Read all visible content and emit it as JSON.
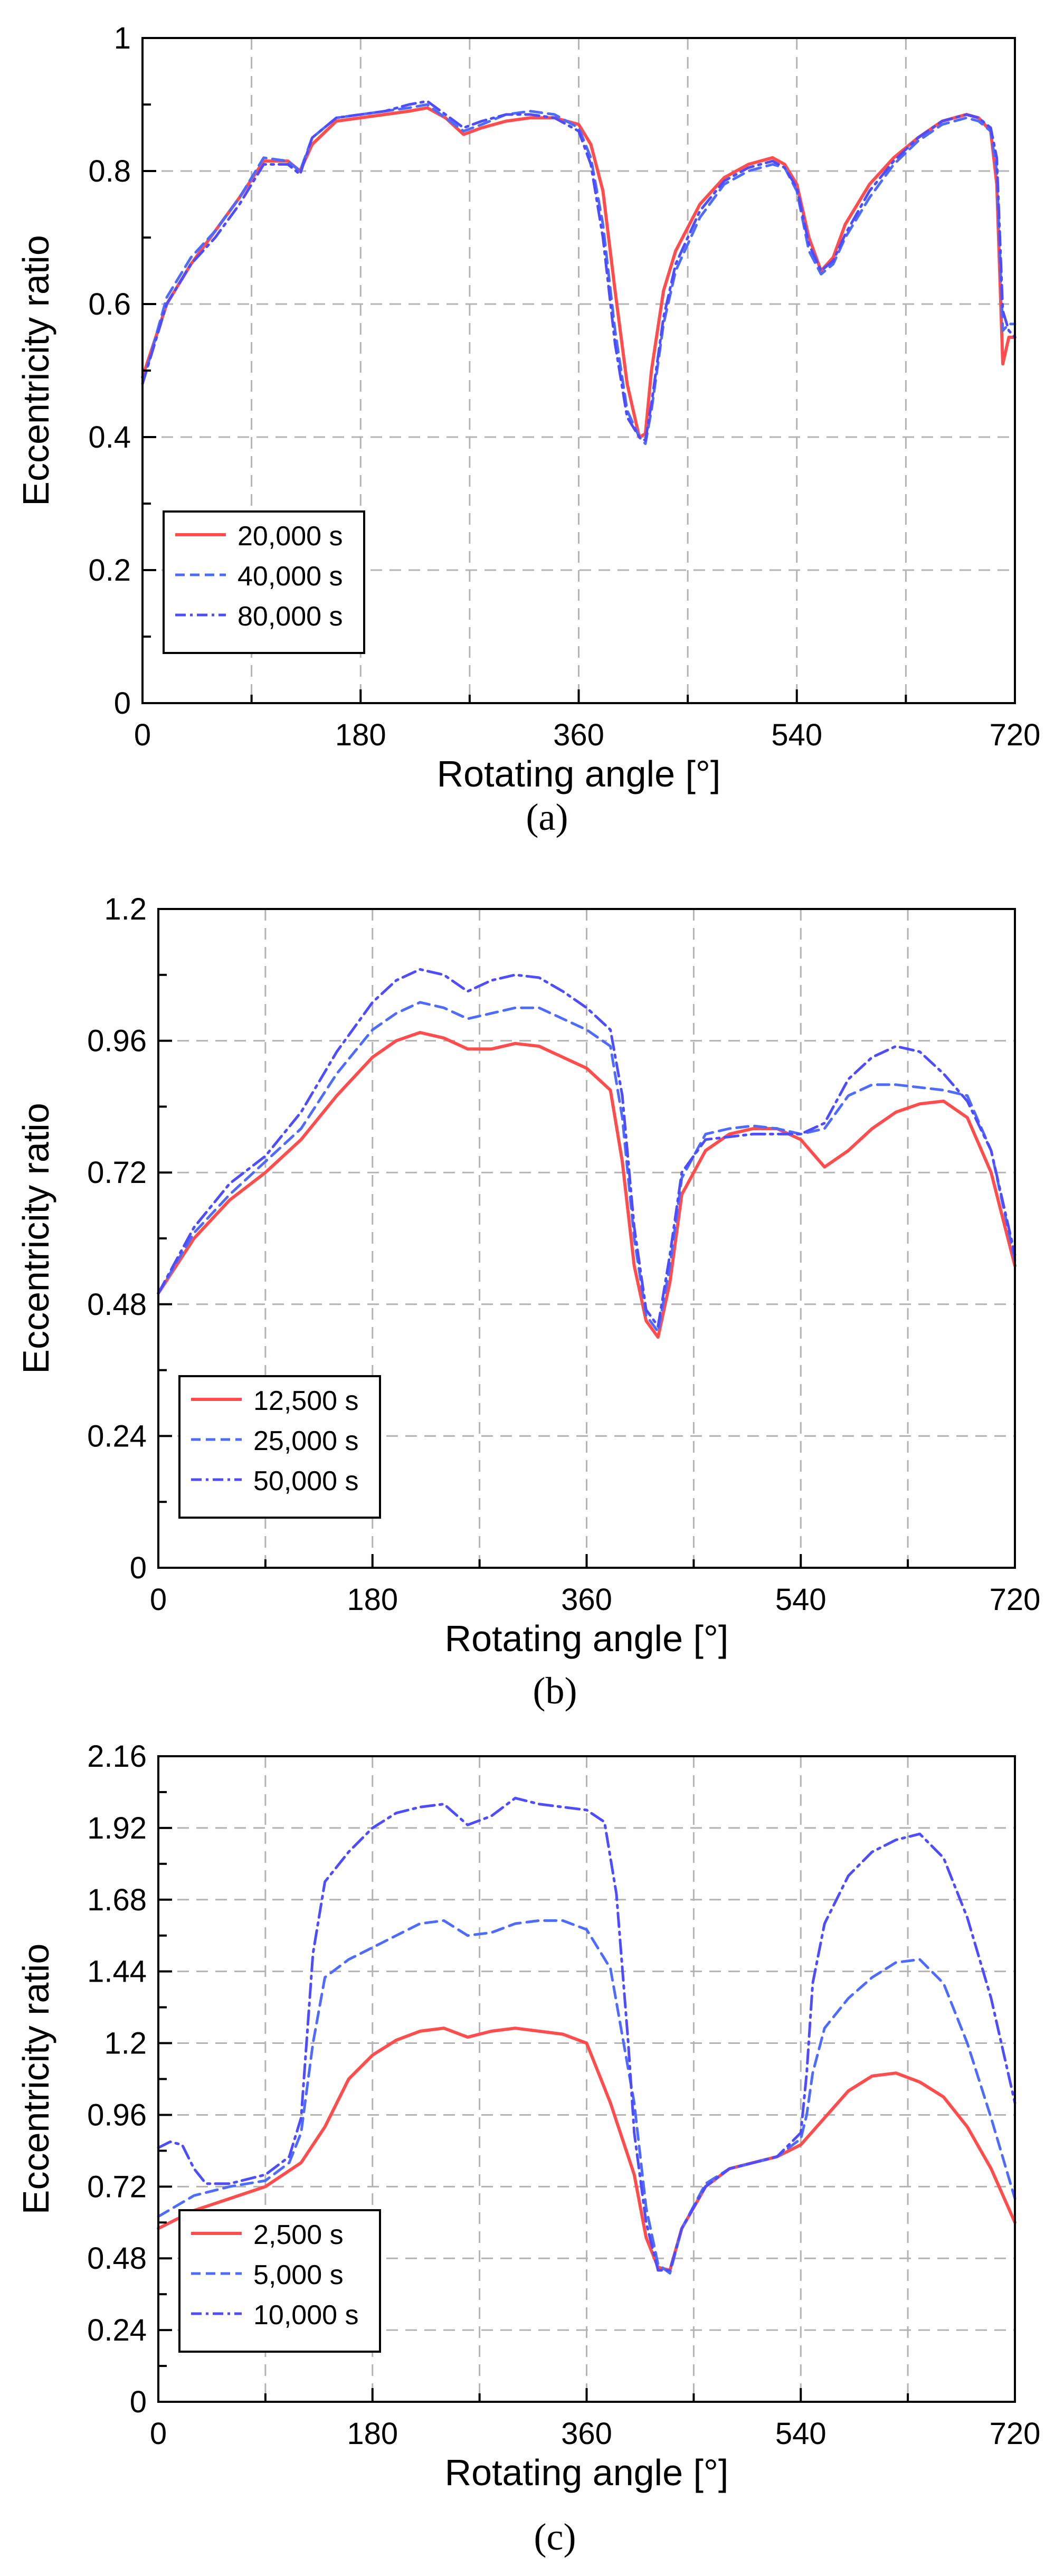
{
  "figure": {
    "panels": [
      {
        "caption": "(a)"
      },
      {
        "caption": "(b)"
      },
      {
        "caption": "(c)"
      }
    ]
  },
  "style": {
    "series_colors": [
      "#ff4d4d",
      "#4d6bff",
      "#4d4dff"
    ],
    "grid_color": "#b3b3b3",
    "axis_color": "#000000"
  },
  "chart_data": [
    {
      "type": "line",
      "title": "",
      "xlabel": "Rotating angle [°]",
      "ylabel": "Eccentricity ratio",
      "xlim": [
        0,
        720
      ],
      "ylim": [
        0,
        1
      ],
      "xticks": [
        0,
        180,
        360,
        540,
        720
      ],
      "xtick_labels": [
        "0",
        "180",
        "360",
        "540",
        "720"
      ],
      "yticks": [
        0,
        0.2,
        0.4,
        0.6,
        0.8,
        1
      ],
      "ytick_labels": [
        "0",
        "0.2",
        "0.4",
        "0.6",
        "0.8",
        "1"
      ],
      "grid": true,
      "legend_position": "bottom-left",
      "series": [
        {
          "name": "20,000 s",
          "style": "solid",
          "x": [
            0,
            20,
            40,
            60,
            80,
            100,
            120,
            130,
            140,
            160,
            180,
            200,
            220,
            235,
            250,
            265,
            280,
            300,
            320,
            340,
            360,
            370,
            380,
            390,
            400,
            410,
            415,
            420,
            430,
            440,
            460,
            480,
            500,
            520,
            530,
            540,
            550,
            560,
            570,
            580,
            600,
            620,
            640,
            660,
            680,
            690,
            700,
            705,
            710,
            715,
            720
          ],
          "y": [
            0.49,
            0.6,
            0.66,
            0.71,
            0.76,
            0.815,
            0.815,
            0.8,
            0.84,
            0.875,
            0.88,
            0.885,
            0.89,
            0.895,
            0.88,
            0.855,
            0.865,
            0.875,
            0.88,
            0.88,
            0.87,
            0.84,
            0.77,
            0.62,
            0.48,
            0.4,
            0.405,
            0.5,
            0.62,
            0.68,
            0.75,
            0.79,
            0.81,
            0.82,
            0.81,
            0.78,
            0.7,
            0.65,
            0.67,
            0.72,
            0.78,
            0.82,
            0.85,
            0.875,
            0.885,
            0.88,
            0.86,
            0.78,
            0.51,
            0.55,
            0.55
          ]
        },
        {
          "name": "40,000 s",
          "style": "dashed",
          "x": [
            0,
            20,
            40,
            60,
            80,
            100,
            120,
            130,
            140,
            160,
            180,
            200,
            220,
            235,
            250,
            265,
            280,
            300,
            320,
            340,
            360,
            370,
            380,
            390,
            400,
            410,
            415,
            420,
            430,
            440,
            460,
            480,
            500,
            520,
            530,
            540,
            550,
            560,
            570,
            580,
            600,
            620,
            640,
            660,
            680,
            690,
            700,
            705,
            710,
            715,
            720
          ],
          "y": [
            0.48,
            0.61,
            0.67,
            0.71,
            0.76,
            0.82,
            0.815,
            0.8,
            0.85,
            0.88,
            0.885,
            0.89,
            0.895,
            0.9,
            0.88,
            0.86,
            0.87,
            0.885,
            0.89,
            0.885,
            0.865,
            0.82,
            0.72,
            0.56,
            0.44,
            0.4,
            0.39,
            0.44,
            0.57,
            0.65,
            0.73,
            0.78,
            0.8,
            0.81,
            0.805,
            0.77,
            0.68,
            0.645,
            0.66,
            0.7,
            0.76,
            0.81,
            0.845,
            0.87,
            0.88,
            0.875,
            0.86,
            0.8,
            0.56,
            0.57,
            0.57
          ]
        },
        {
          "name": "80,000 s",
          "style": "dashdot",
          "x": [
            0,
            20,
            40,
            60,
            80,
            100,
            120,
            130,
            140,
            160,
            180,
            200,
            220,
            235,
            250,
            265,
            280,
            300,
            320,
            340,
            360,
            370,
            380,
            390,
            400,
            410,
            415,
            420,
            430,
            440,
            460,
            480,
            500,
            520,
            530,
            540,
            550,
            560,
            570,
            580,
            600,
            620,
            640,
            660,
            680,
            690,
            700,
            705,
            710,
            715,
            720
          ],
          "y": [
            0.48,
            0.6,
            0.66,
            0.7,
            0.75,
            0.81,
            0.81,
            0.795,
            0.85,
            0.88,
            0.885,
            0.89,
            0.9,
            0.905,
            0.885,
            0.865,
            0.875,
            0.885,
            0.885,
            0.88,
            0.86,
            0.81,
            0.7,
            0.54,
            0.43,
            0.4,
            0.395,
            0.45,
            0.58,
            0.66,
            0.74,
            0.785,
            0.805,
            0.815,
            0.805,
            0.775,
            0.69,
            0.65,
            0.665,
            0.705,
            0.77,
            0.815,
            0.85,
            0.875,
            0.885,
            0.88,
            0.865,
            0.82,
            0.59,
            0.56,
            0.55
          ]
        }
      ]
    },
    {
      "type": "line",
      "title": "",
      "xlabel": "Rotating angle [°]",
      "ylabel": "Eccentricity ratio",
      "xlim": [
        0,
        720
      ],
      "ylim": [
        0,
        1.2
      ],
      "xticks": [
        0,
        180,
        360,
        540,
        720
      ],
      "xtick_labels": [
        "0",
        "180",
        "360",
        "540",
        "720"
      ],
      "yticks": [
        0,
        0.24,
        0.48,
        0.72,
        0.96,
        1.2
      ],
      "ytick_labels": [
        "0",
        "0.24",
        "0.48",
        "0.72",
        "0.96",
        "1.2"
      ],
      "grid": true,
      "legend_position": "bottom-left",
      "series": [
        {
          "name": "12,500 s",
          "style": "solid",
          "x": [
            0,
            30,
            60,
            90,
            120,
            150,
            180,
            200,
            220,
            240,
            260,
            280,
            300,
            320,
            340,
            360,
            380,
            390,
            400,
            410,
            420,
            430,
            440,
            460,
            480,
            500,
            520,
            540,
            560,
            580,
            600,
            620,
            640,
            660,
            680,
            700,
            720
          ],
          "y": [
            0.5,
            0.6,
            0.67,
            0.72,
            0.78,
            0.86,
            0.93,
            0.96,
            0.975,
            0.965,
            0.945,
            0.945,
            0.955,
            0.95,
            0.93,
            0.91,
            0.87,
            0.74,
            0.55,
            0.45,
            0.42,
            0.52,
            0.68,
            0.76,
            0.79,
            0.8,
            0.8,
            0.78,
            0.73,
            0.76,
            0.8,
            0.83,
            0.845,
            0.85,
            0.82,
            0.72,
            0.55
          ]
        },
        {
          "name": "25,000 s",
          "style": "dashed",
          "x": [
            0,
            30,
            60,
            90,
            120,
            150,
            180,
            200,
            220,
            240,
            260,
            280,
            300,
            320,
            340,
            360,
            380,
            390,
            400,
            410,
            420,
            430,
            440,
            460,
            480,
            500,
            520,
            540,
            560,
            580,
            600,
            620,
            640,
            660,
            680,
            700,
            720
          ],
          "y": [
            0.5,
            0.61,
            0.68,
            0.74,
            0.8,
            0.9,
            0.98,
            1.01,
            1.03,
            1.02,
            1.0,
            1.01,
            1.02,
            1.02,
            1.0,
            0.98,
            0.95,
            0.82,
            0.6,
            0.46,
            0.43,
            0.55,
            0.71,
            0.79,
            0.8,
            0.805,
            0.8,
            0.79,
            0.8,
            0.86,
            0.88,
            0.88,
            0.875,
            0.87,
            0.86,
            0.76,
            0.56
          ]
        },
        {
          "name": "50,000 s",
          "style": "dashdot",
          "x": [
            0,
            30,
            60,
            90,
            120,
            150,
            180,
            200,
            220,
            240,
            260,
            280,
            300,
            320,
            340,
            360,
            380,
            390,
            400,
            410,
            420,
            430,
            440,
            460,
            480,
            500,
            520,
            540,
            560,
            580,
            600,
            620,
            640,
            660,
            680,
            700,
            720
          ],
          "y": [
            0.5,
            0.62,
            0.7,
            0.75,
            0.83,
            0.94,
            1.03,
            1.07,
            1.09,
            1.08,
            1.05,
            1.07,
            1.08,
            1.075,
            1.05,
            1.02,
            0.98,
            0.86,
            0.62,
            0.47,
            0.44,
            0.57,
            0.72,
            0.78,
            0.785,
            0.79,
            0.79,
            0.79,
            0.81,
            0.89,
            0.93,
            0.95,
            0.94,
            0.9,
            0.85,
            0.76,
            0.57
          ]
        }
      ]
    },
    {
      "type": "line",
      "title": "",
      "xlabel": "Rotating angle [°]",
      "ylabel": "Eccentricity ratio",
      "xlim": [
        0,
        720
      ],
      "ylim": [
        0,
        2.16
      ],
      "xticks": [
        0,
        180,
        360,
        540,
        720
      ],
      "xtick_labels": [
        "0",
        "180",
        "360",
        "540",
        "720"
      ],
      "yticks": [
        0,
        0.24,
        0.48,
        0.72,
        0.96,
        1.2,
        1.44,
        1.68,
        1.92,
        2.16
      ],
      "ytick_labels": [
        "0",
        "0.24",
        "0.48",
        "0.72",
        "0.96",
        "1.2",
        "1.44",
        "1.68",
        "1.92",
        "2.16"
      ],
      "grid": true,
      "legend_position": "bottom-left",
      "series": [
        {
          "name": "2,500 s",
          "style": "solid",
          "x": [
            0,
            30,
            60,
            90,
            120,
            140,
            160,
            180,
            200,
            220,
            240,
            260,
            280,
            300,
            320,
            340,
            360,
            380,
            400,
            410,
            420,
            430,
            440,
            460,
            480,
            500,
            520,
            540,
            560,
            580,
            600,
            620,
            640,
            660,
            680,
            700,
            720
          ],
          "y": [
            0.58,
            0.64,
            0.68,
            0.72,
            0.8,
            0.92,
            1.08,
            1.16,
            1.21,
            1.24,
            1.25,
            1.22,
            1.24,
            1.25,
            1.24,
            1.23,
            1.2,
            1.0,
            0.76,
            0.55,
            0.45,
            0.44,
            0.58,
            0.72,
            0.78,
            0.8,
            0.82,
            0.86,
            0.95,
            1.04,
            1.09,
            1.1,
            1.07,
            1.02,
            0.92,
            0.78,
            0.6
          ]
        },
        {
          "name": "5,000 s",
          "style": "dashed",
          "x": [
            0,
            30,
            60,
            90,
            110,
            120,
            130,
            140,
            160,
            180,
            200,
            220,
            240,
            260,
            280,
            300,
            320,
            340,
            360,
            380,
            400,
            410,
            420,
            430,
            440,
            460,
            480,
            500,
            520,
            540,
            545,
            550,
            560,
            580,
            600,
            620,
            640,
            660,
            680,
            700,
            720
          ],
          "y": [
            0.62,
            0.69,
            0.72,
            0.74,
            0.8,
            0.9,
            1.2,
            1.42,
            1.48,
            1.52,
            1.56,
            1.6,
            1.61,
            1.56,
            1.57,
            1.6,
            1.61,
            1.61,
            1.58,
            1.45,
            1.0,
            0.65,
            0.46,
            0.43,
            0.58,
            0.73,
            0.78,
            0.8,
            0.82,
            0.88,
            0.96,
            1.1,
            1.25,
            1.35,
            1.42,
            1.47,
            1.48,
            1.4,
            1.2,
            0.95,
            0.68
          ]
        },
        {
          "name": "10,000 s",
          "style": "dashdot",
          "x": [
            0,
            10,
            20,
            30,
            40,
            60,
            90,
            110,
            120,
            130,
            140,
            160,
            180,
            200,
            220,
            240,
            260,
            280,
            300,
            320,
            340,
            360,
            375,
            385,
            395,
            400,
            410,
            420,
            430,
            440,
            460,
            480,
            500,
            520,
            540,
            545,
            550,
            560,
            580,
            600,
            620,
            640,
            660,
            680,
            700,
            720
          ],
          "y": [
            0.85,
            0.87,
            0.86,
            0.78,
            0.73,
            0.73,
            0.76,
            0.82,
            0.95,
            1.5,
            1.74,
            1.84,
            1.92,
            1.97,
            1.99,
            2.0,
            1.93,
            1.96,
            2.02,
            2.0,
            1.99,
            1.98,
            1.94,
            1.7,
            1.2,
            0.9,
            0.6,
            0.44,
            0.44,
            0.58,
            0.72,
            0.78,
            0.8,
            0.82,
            0.9,
            1.1,
            1.4,
            1.6,
            1.76,
            1.84,
            1.88,
            1.9,
            1.82,
            1.62,
            1.35,
            1.0
          ]
        }
      ]
    }
  ]
}
